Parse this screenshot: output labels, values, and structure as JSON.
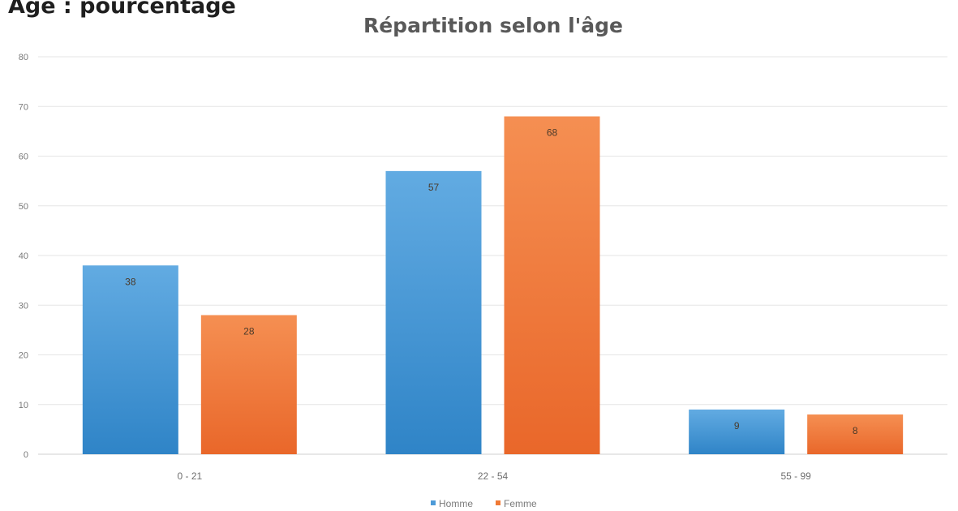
{
  "header": {
    "clipped_heading": "Âge : pourcentage",
    "colors": {
      "homme": "#4d9bd8",
      "femme": "#f07a35"
    }
  },
  "chart_data": {
    "type": "bar",
    "title": "Répartition selon l'âge",
    "categories": [
      "0 - 21",
      "22 - 54",
      "55 - 99"
    ],
    "series": [
      {
        "name": "Homme",
        "values": [
          38,
          57,
          9
        ],
        "color": "#4d9bd8"
      },
      {
        "name": "Femme",
        "values": [
          28,
          68,
          8
        ],
        "color": "#f07a35"
      }
    ],
    "ylim": [
      0,
      80
    ],
    "yticks": [
      0,
      10,
      20,
      30,
      40,
      50,
      60,
      70,
      80
    ],
    "grid": true,
    "legend": "bottom-center"
  }
}
